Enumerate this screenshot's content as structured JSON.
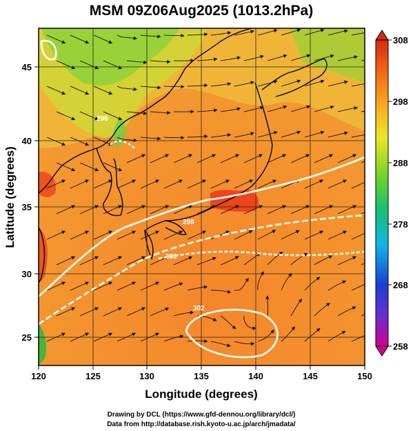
{
  "title": "MSM 09Z06Aug2025 (1013.2hPa)",
  "x_axis": {
    "label": "Longitude (degrees)",
    "range": [
      120,
      150
    ],
    "ticks": [
      "120",
      "125",
      "130",
      "135",
      "140",
      "145",
      "150"
    ]
  },
  "y_axis": {
    "label": "Latitude (degrees)",
    "range": [
      22.6,
      48
    ],
    "ticks": [
      "25",
      "30",
      "35",
      "40",
      "45"
    ]
  },
  "colorbar": {
    "ticks": [
      "308",
      "298",
      "288",
      "278",
      "268",
      "258"
    ],
    "range": [
      258,
      308
    ],
    "colors": [
      "#d20090",
      "#6a2fd0",
      "#1a5ce8",
      "#0fb6e6",
      "#18c070",
      "#6ad428",
      "#ece626",
      "#fba21e",
      "#ef5a14",
      "#d42a12"
    ]
  },
  "contour_labels": [
    "296",
    "298",
    "300",
    "302"
  ],
  "credits": {
    "line1": "Drawing by DCL (https://www.gfd-dennou.org/library/dcl/)",
    "line2": "Data from http://database.rish.kyoto-u.ac.jp/arch/jmadata/"
  }
}
